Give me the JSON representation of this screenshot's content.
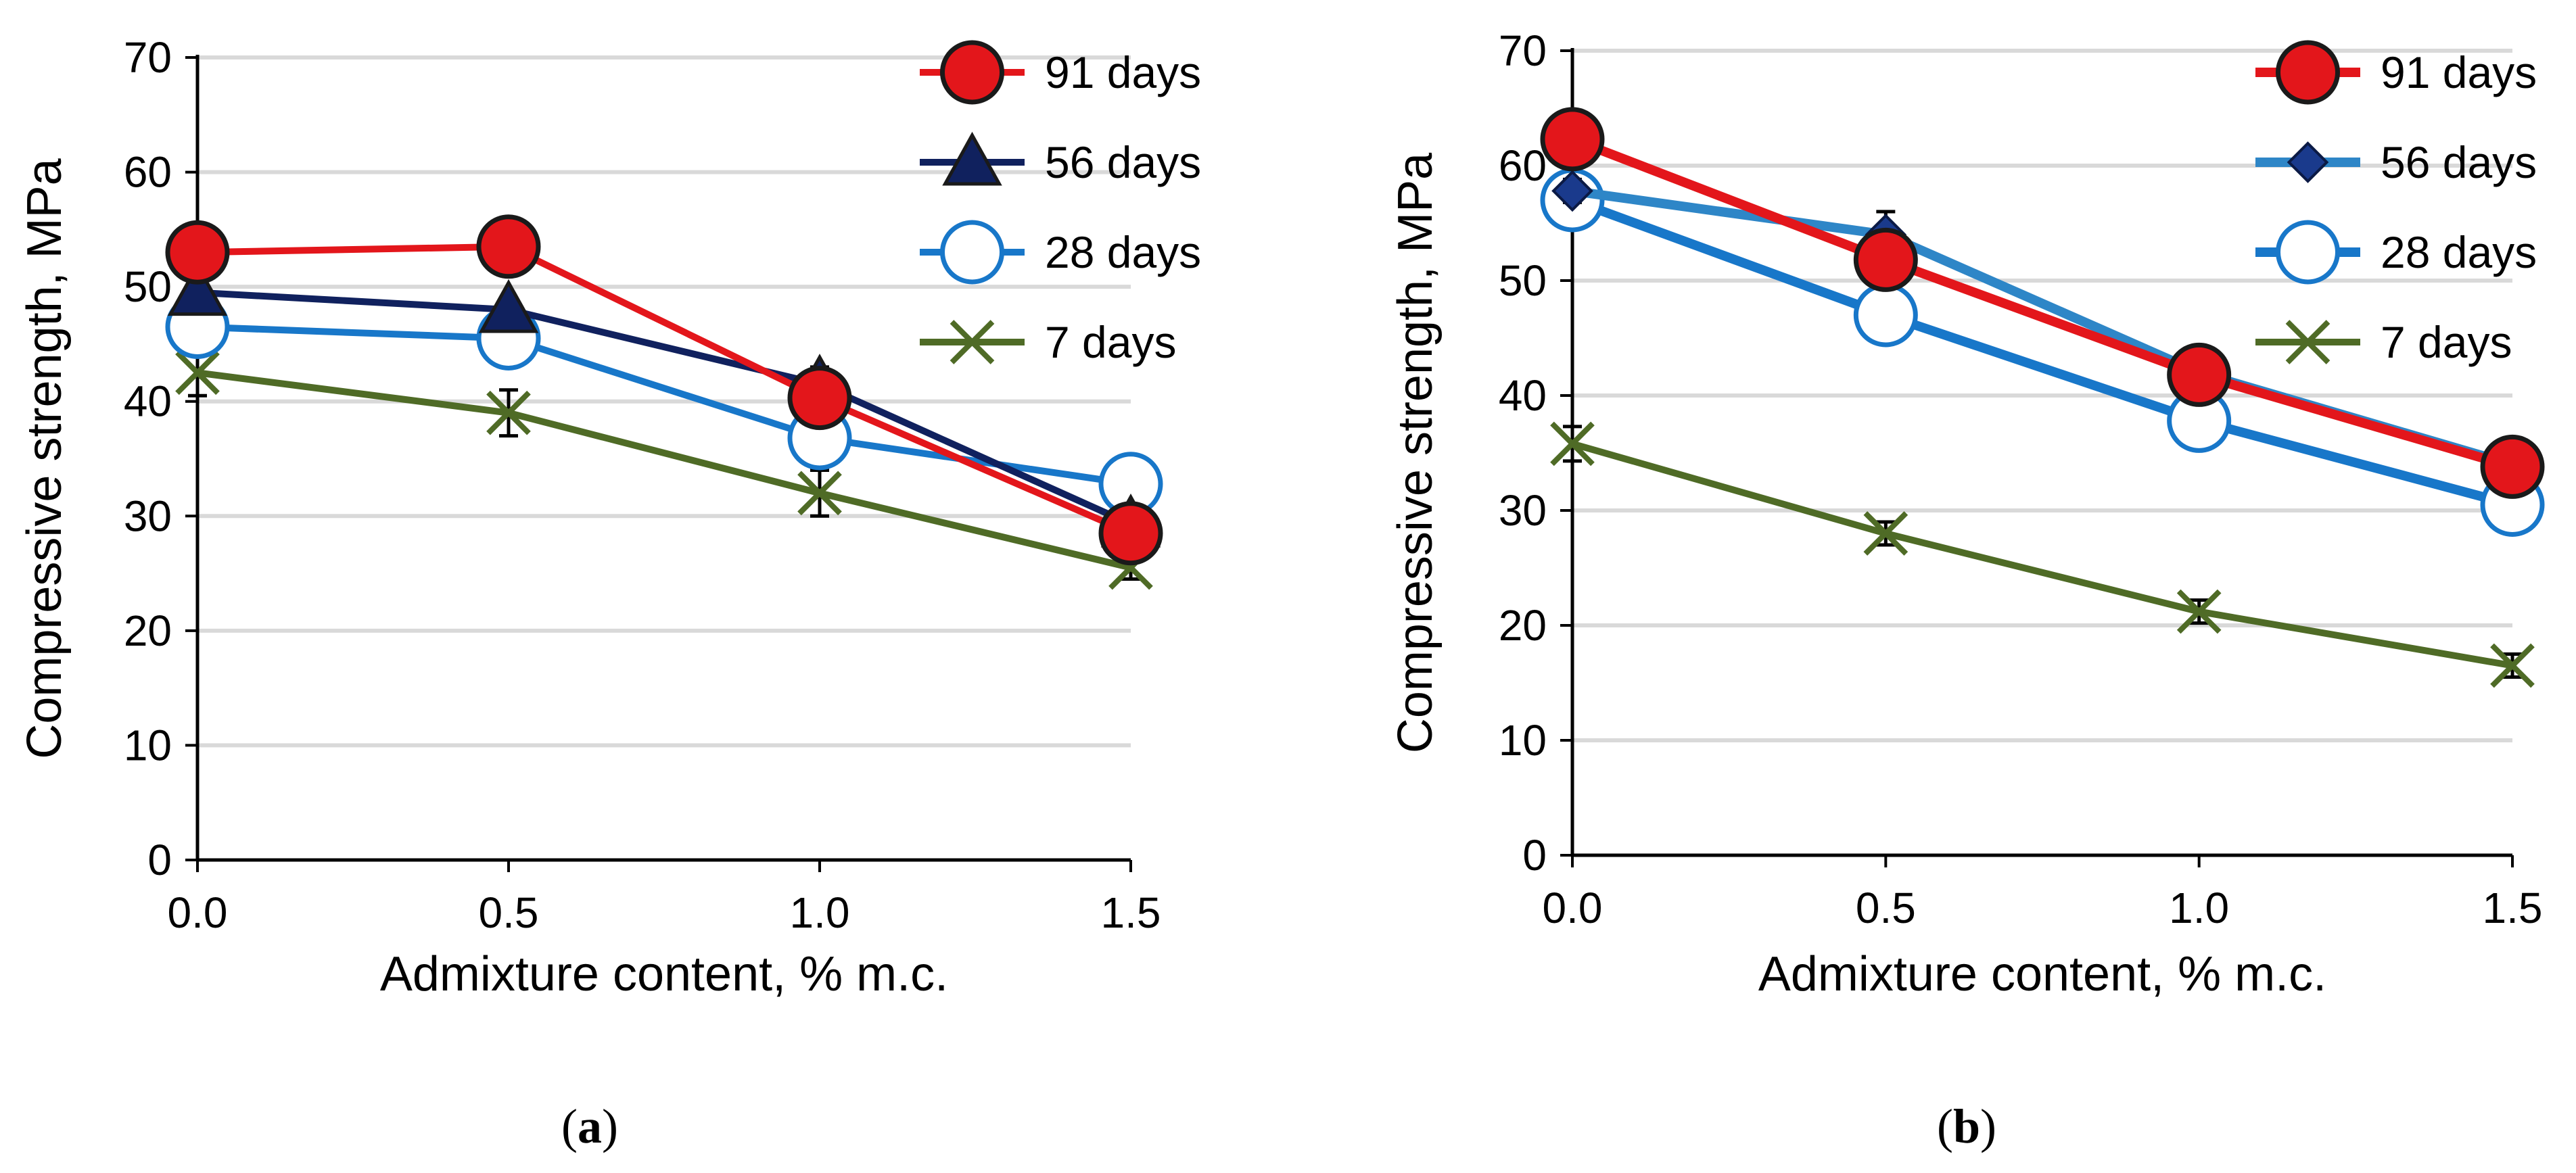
{
  "chart_data": [
    {
      "type": "line",
      "caption": "(a)",
      "caption_letter": "a",
      "xlabel": "Admixture content, % m.c.",
      "ylabel": "Compressive strength, MPa",
      "x": [
        0.0,
        0.5,
        1.0,
        1.5
      ],
      "x_tick_labels": [
        "0.0",
        "0.5",
        "1.0",
        "1.5"
      ],
      "xlim": [
        0,
        1.5
      ],
      "ylim": [
        0,
        70
      ],
      "y_ticks": [
        0,
        10,
        20,
        30,
        40,
        50,
        60,
        70
      ],
      "grid": "horizontal",
      "legend_position": "top-right",
      "series": [
        {
          "name": "91 days",
          "values": [
            53.0,
            53.5,
            40.3,
            28.5
          ],
          "errors": [
            0.8,
            2.0,
            1.2,
            1.5
          ],
          "color": "#e3161b",
          "marker": "filled-circle",
          "marker_fill": "#e3161b"
        },
        {
          "name": "56 days",
          "values": [
            49.5,
            48.0,
            41.5,
            29.3
          ],
          "errors": [
            1.0,
            1.0,
            1.5,
            1.5
          ],
          "color": "#10215e",
          "marker": "triangle",
          "marker_fill": "#10215e"
        },
        {
          "name": "28 days",
          "values": [
            46.5,
            45.5,
            36.8,
            32.8
          ],
          "errors": [
            1.0,
            1.5,
            1.5,
            1.0
          ],
          "color": "#1877c9",
          "marker": "open-circle",
          "marker_fill": "#ffffff"
        },
        {
          "name": "7 days",
          "values": [
            42.5,
            39.0,
            32.0,
            25.5
          ],
          "errors": [
            2.0,
            2.0,
            2.0,
            1.0
          ],
          "color": "#4f6b26",
          "marker": "x",
          "marker_fill": "none"
        }
      ]
    },
    {
      "type": "line",
      "caption": "(b)",
      "caption_letter": "b",
      "xlabel": "Admixture content, % m.c.",
      "ylabel": "Compressive strength, MPa",
      "x": [
        0.0,
        0.5,
        1.0,
        1.5
      ],
      "x_tick_labels": [
        "0.0",
        "0.5",
        "1.0",
        "1.5"
      ],
      "xlim": [
        0,
        1.5
      ],
      "ylim": [
        0,
        70
      ],
      "y_ticks": [
        0,
        10,
        20,
        30,
        40,
        50,
        60,
        70
      ],
      "grid": "horizontal",
      "legend_position": "top-right",
      "series": [
        {
          "name": "91 days",
          "values": [
            62.3,
            51.8,
            41.8,
            33.8
          ],
          "errors": [
            1.0,
            2.0,
            2.0,
            2.0
          ],
          "color": "#e3161b",
          "marker": "filled-circle",
          "marker_fill": "#e3161b"
        },
        {
          "name": "56 days",
          "values": [
            57.8,
            54.0,
            42.0,
            34.0
          ],
          "errors": [
            1.0,
            2.0,
            1.5,
            1.5
          ],
          "color": "#2e86c7",
          "marker": "diamond",
          "marker_fill": "#1a3a8c"
        },
        {
          "name": "28 days",
          "values": [
            57.0,
            47.0,
            37.8,
            30.5
          ],
          "errors": [
            2.5,
            2.5,
            1.0,
            1.0
          ],
          "color": "#1877c9",
          "marker": "open-circle",
          "marker_fill": "#ffffff"
        },
        {
          "name": "7 days",
          "values": [
            35.8,
            28.0,
            21.2,
            16.5
          ],
          "errors": [
            1.5,
            1.0,
            1.0,
            1.0
          ],
          "color": "#4f6b26",
          "marker": "x",
          "marker_fill": "none"
        }
      ]
    }
  ]
}
